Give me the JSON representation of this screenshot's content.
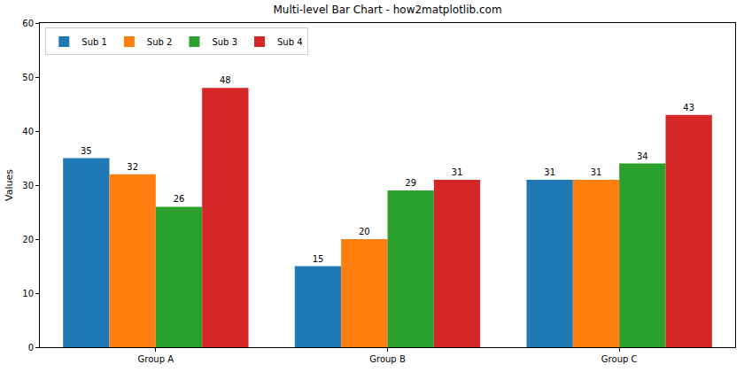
{
  "chart_data": {
    "type": "bar",
    "title": "Multi-level Bar Chart - how2matplotlib.com",
    "y_label": "Values",
    "categories": [
      "Group A",
      "Group B",
      "Group C"
    ],
    "series": [
      {
        "name": "Sub 1",
        "color": "#1f77b4",
        "values": [
          35,
          15,
          31
        ]
      },
      {
        "name": "Sub 2",
        "color": "#ff7f0e",
        "values": [
          32,
          20,
          31
        ]
      },
      {
        "name": "Sub 3",
        "color": "#2ca02c",
        "values": [
          26,
          29,
          34
        ]
      },
      {
        "name": "Sub 4",
        "color": "#d62728",
        "values": [
          48,
          31,
          43
        ]
      }
    ],
    "ylim": [
      0,
      60
    ],
    "yticks": [
      0,
      10,
      20,
      30,
      40,
      50,
      60
    ],
    "grid": false,
    "legend": "upper left",
    "data_labels": true
  }
}
